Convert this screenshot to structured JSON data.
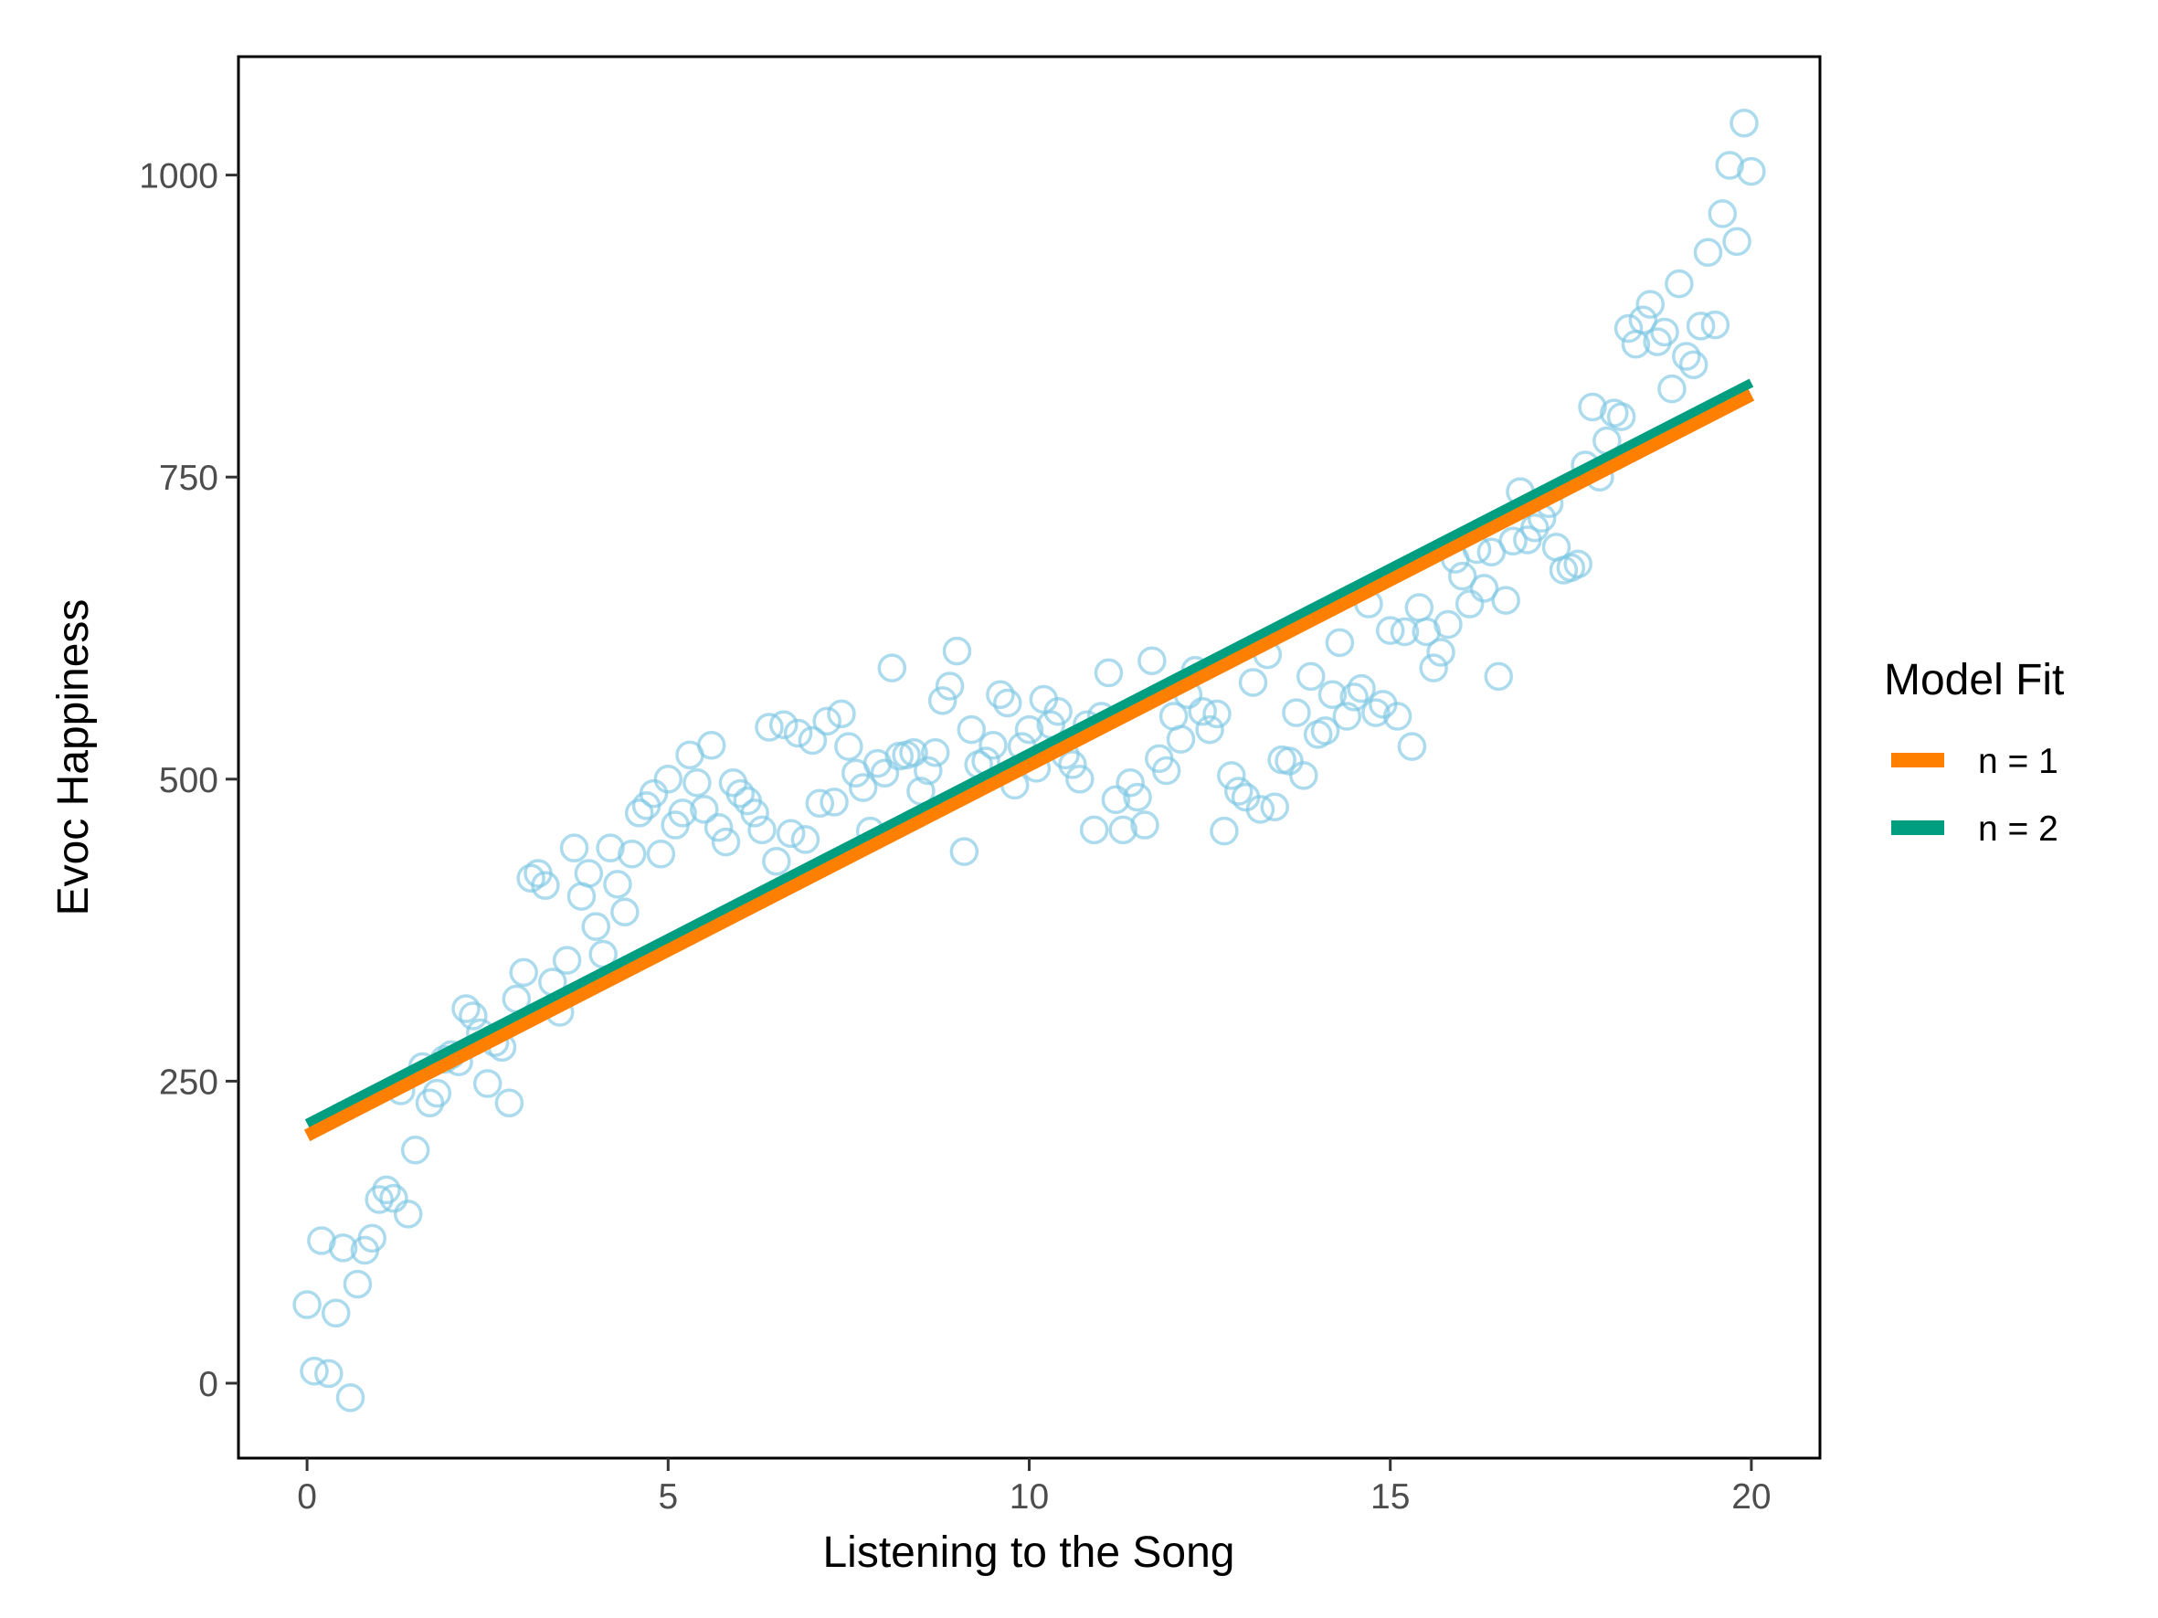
{
  "chart_data": {
    "type": "scatter",
    "xlabel": "Listening to the Song",
    "ylabel": "Evoc Happiness",
    "xlim": [
      -0.95,
      20.95
    ],
    "ylim": [
      -62,
      1098
    ],
    "xticks": [
      0,
      5,
      10,
      15,
      20
    ],
    "xtick_labels": [
      "0",
      "5",
      "10",
      "15",
      "20"
    ],
    "yticks": [
      0,
      250,
      500,
      750,
      1000
    ],
    "ytick_labels": [
      "0",
      "250",
      "500",
      "750",
      "1000"
    ],
    "grid": false,
    "legend": {
      "title": "Model Fit",
      "position": "right",
      "entries": [
        {
          "label": "n = 1",
          "color": "#ff8000"
        },
        {
          "label": "n = 2",
          "color": "#009e80"
        }
      ]
    },
    "points_color": "#7ec8e3",
    "points": [
      {
        "x": 0.0,
        "y": 65
      },
      {
        "x": 0.1,
        "y": 10
      },
      {
        "x": 0.2,
        "y": 118
      },
      {
        "x": 0.3,
        "y": 8
      },
      {
        "x": 0.4,
        "y": 58
      },
      {
        "x": 0.5,
        "y": 112
      },
      {
        "x": 0.6,
        "y": -12
      },
      {
        "x": 0.7,
        "y": 82
      },
      {
        "x": 0.8,
        "y": 110
      },
      {
        "x": 0.9,
        "y": 120
      },
      {
        "x": 1.0,
        "y": 152
      },
      {
        "x": 1.1,
        "y": 160
      },
      {
        "x": 1.2,
        "y": 153
      },
      {
        "x": 1.3,
        "y": 242
      },
      {
        "x": 1.4,
        "y": 140
      },
      {
        "x": 1.5,
        "y": 193
      },
      {
        "x": 1.6,
        "y": 262
      },
      {
        "x": 1.7,
        "y": 232
      },
      {
        "x": 1.8,
        "y": 240
      },
      {
        "x": 1.9,
        "y": 268
      },
      {
        "x": 2.0,
        "y": 272
      },
      {
        "x": 2.1,
        "y": 266
      },
      {
        "x": 2.2,
        "y": 310
      },
      {
        "x": 2.3,
        "y": 304
      },
      {
        "x": 2.4,
        "y": 290
      },
      {
        "x": 2.5,
        "y": 248
      },
      {
        "x": 2.6,
        "y": 282
      },
      {
        "x": 2.7,
        "y": 278
      },
      {
        "x": 2.8,
        "y": 232
      },
      {
        "x": 2.9,
        "y": 318
      },
      {
        "x": 3.0,
        "y": 340
      },
      {
        "x": 3.1,
        "y": 418
      },
      {
        "x": 3.2,
        "y": 422
      },
      {
        "x": 3.3,
        "y": 412
      },
      {
        "x": 3.4,
        "y": 332
      },
      {
        "x": 3.5,
        "y": 307
      },
      {
        "x": 3.6,
        "y": 350
      },
      {
        "x": 3.7,
        "y": 443
      },
      {
        "x": 3.8,
        "y": 403
      },
      {
        "x": 3.9,
        "y": 422
      },
      {
        "x": 4.0,
        "y": 378
      },
      {
        "x": 4.1,
        "y": 355
      },
      {
        "x": 4.2,
        "y": 443
      },
      {
        "x": 4.3,
        "y": 413
      },
      {
        "x": 4.4,
        "y": 390
      },
      {
        "x": 4.5,
        "y": 438
      },
      {
        "x": 4.6,
        "y": 472
      },
      {
        "x": 4.7,
        "y": 478
      },
      {
        "x": 4.8,
        "y": 488
      },
      {
        "x": 4.9,
        "y": 438
      },
      {
        "x": 5.0,
        "y": 500
      },
      {
        "x": 5.1,
        "y": 462
      },
      {
        "x": 5.2,
        "y": 472
      },
      {
        "x": 5.3,
        "y": 520
      },
      {
        "x": 5.4,
        "y": 497
      },
      {
        "x": 5.5,
        "y": 475
      },
      {
        "x": 5.6,
        "y": 528
      },
      {
        "x": 5.7,
        "y": 460
      },
      {
        "x": 5.8,
        "y": 448
      },
      {
        "x": 5.9,
        "y": 497
      },
      {
        "x": 6.0,
        "y": 488
      },
      {
        "x": 6.1,
        "y": 482
      },
      {
        "x": 6.2,
        "y": 472
      },
      {
        "x": 6.3,
        "y": 458
      },
      {
        "x": 6.4,
        "y": 543
      },
      {
        "x": 6.5,
        "y": 432
      },
      {
        "x": 6.6,
        "y": 545
      },
      {
        "x": 6.7,
        "y": 455
      },
      {
        "x": 6.8,
        "y": 538
      },
      {
        "x": 6.9,
        "y": 450
      },
      {
        "x": 7.0,
        "y": 532
      },
      {
        "x": 7.1,
        "y": 480
      },
      {
        "x": 7.2,
        "y": 548
      },
      {
        "x": 7.3,
        "y": 481
      },
      {
        "x": 7.4,
        "y": 554
      },
      {
        "x": 7.5,
        "y": 527
      },
      {
        "x": 7.6,
        "y": 505
      },
      {
        "x": 7.7,
        "y": 493
      },
      {
        "x": 7.8,
        "y": 457
      },
      {
        "x": 7.9,
        "y": 513
      },
      {
        "x": 8.0,
        "y": 505
      },
      {
        "x": 8.1,
        "y": 592
      },
      {
        "x": 8.2,
        "y": 519
      },
      {
        "x": 8.3,
        "y": 520
      },
      {
        "x": 8.4,
        "y": 522
      },
      {
        "x": 8.5,
        "y": 490
      },
      {
        "x": 8.6,
        "y": 507
      },
      {
        "x": 8.7,
        "y": 522
      },
      {
        "x": 8.8,
        "y": 565
      },
      {
        "x": 8.9,
        "y": 577
      },
      {
        "x": 9.0,
        "y": 606
      },
      {
        "x": 9.1,
        "y": 440
      },
      {
        "x": 9.2,
        "y": 541
      },
      {
        "x": 9.3,
        "y": 512
      },
      {
        "x": 9.4,
        "y": 515
      },
      {
        "x": 9.5,
        "y": 528
      },
      {
        "x": 9.6,
        "y": 570
      },
      {
        "x": 9.7,
        "y": 563
      },
      {
        "x": 9.8,
        "y": 495
      },
      {
        "x": 9.9,
        "y": 527
      },
      {
        "x": 10.0,
        "y": 541
      },
      {
        "x": 10.1,
        "y": 509
      },
      {
        "x": 10.2,
        "y": 566
      },
      {
        "x": 10.3,
        "y": 545
      },
      {
        "x": 10.4,
        "y": 556
      },
      {
        "x": 10.5,
        "y": 520
      },
      {
        "x": 10.6,
        "y": 512
      },
      {
        "x": 10.7,
        "y": 500
      },
      {
        "x": 10.8,
        "y": 545
      },
      {
        "x": 10.9,
        "y": 458
      },
      {
        "x": 11.0,
        "y": 552
      },
      {
        "x": 11.1,
        "y": 588
      },
      {
        "x": 11.2,
        "y": 483
      },
      {
        "x": 11.3,
        "y": 458
      },
      {
        "x": 11.4,
        "y": 497
      },
      {
        "x": 11.5,
        "y": 485
      },
      {
        "x": 11.6,
        "y": 462
      },
      {
        "x": 11.7,
        "y": 598
      },
      {
        "x": 11.8,
        "y": 517
      },
      {
        "x": 11.9,
        "y": 507
      },
      {
        "x": 12.0,
        "y": 552
      },
      {
        "x": 12.1,
        "y": 533
      },
      {
        "x": 12.2,
        "y": 570
      },
      {
        "x": 12.3,
        "y": 590
      },
      {
        "x": 12.4,
        "y": 556
      },
      {
        "x": 12.5,
        "y": 541
      },
      {
        "x": 12.6,
        "y": 554
      },
      {
        "x": 12.7,
        "y": 457
      },
      {
        "x": 12.8,
        "y": 503
      },
      {
        "x": 12.9,
        "y": 490
      },
      {
        "x": 13.0,
        "y": 485
      },
      {
        "x": 13.1,
        "y": 580
      },
      {
        "x": 13.2,
        "y": 475
      },
      {
        "x": 13.3,
        "y": 603
      },
      {
        "x": 13.4,
        "y": 477
      },
      {
        "x": 13.5,
        "y": 516
      },
      {
        "x": 13.6,
        "y": 515
      },
      {
        "x": 13.7,
        "y": 555
      },
      {
        "x": 13.8,
        "y": 503
      },
      {
        "x": 13.9,
        "y": 585
      },
      {
        "x": 14.0,
        "y": 537
      },
      {
        "x": 14.1,
        "y": 540
      },
      {
        "x": 14.2,
        "y": 570
      },
      {
        "x": 14.3,
        "y": 613
      },
      {
        "x": 14.4,
        "y": 552
      },
      {
        "x": 14.5,
        "y": 568
      },
      {
        "x": 14.6,
        "y": 575
      },
      {
        "x": 14.7,
        "y": 645
      },
      {
        "x": 14.8,
        "y": 555
      },
      {
        "x": 14.9,
        "y": 562
      },
      {
        "x": 15.0,
        "y": 623
      },
      {
        "x": 15.1,
        "y": 552
      },
      {
        "x": 15.2,
        "y": 622
      },
      {
        "x": 15.3,
        "y": 527
      },
      {
        "x": 15.4,
        "y": 642
      },
      {
        "x": 15.5,
        "y": 622
      },
      {
        "x": 15.6,
        "y": 592
      },
      {
        "x": 15.7,
        "y": 605
      },
      {
        "x": 15.8,
        "y": 628
      },
      {
        "x": 15.9,
        "y": 682
      },
      {
        "x": 16.0,
        "y": 668
      },
      {
        "x": 16.1,
        "y": 645
      },
      {
        "x": 16.2,
        "y": 690
      },
      {
        "x": 16.3,
        "y": 658
      },
      {
        "x": 16.4,
        "y": 688
      },
      {
        "x": 16.5,
        "y": 585
      },
      {
        "x": 16.6,
        "y": 648
      },
      {
        "x": 16.7,
        "y": 697
      },
      {
        "x": 16.8,
        "y": 738
      },
      {
        "x": 16.9,
        "y": 698
      },
      {
        "x": 17.0,
        "y": 708
      },
      {
        "x": 17.1,
        "y": 716
      },
      {
        "x": 17.2,
        "y": 728
      },
      {
        "x": 17.3,
        "y": 692
      },
      {
        "x": 17.4,
        "y": 673
      },
      {
        "x": 17.5,
        "y": 675
      },
      {
        "x": 17.6,
        "y": 678
      },
      {
        "x": 17.7,
        "y": 760
      },
      {
        "x": 17.8,
        "y": 808
      },
      {
        "x": 17.9,
        "y": 750
      },
      {
        "x": 18.0,
        "y": 780
      },
      {
        "x": 18.1,
        "y": 803
      },
      {
        "x": 18.2,
        "y": 800
      },
      {
        "x": 18.3,
        "y": 873
      },
      {
        "x": 18.4,
        "y": 860
      },
      {
        "x": 18.5,
        "y": 880
      },
      {
        "x": 18.6,
        "y": 893
      },
      {
        "x": 18.7,
        "y": 862
      },
      {
        "x": 18.8,
        "y": 870
      },
      {
        "x": 18.9,
        "y": 823
      },
      {
        "x": 19.0,
        "y": 910
      },
      {
        "x": 19.1,
        "y": 850
      },
      {
        "x": 19.2,
        "y": 843
      },
      {
        "x": 19.3,
        "y": 875
      },
      {
        "x": 19.4,
        "y": 936
      },
      {
        "x": 19.5,
        "y": 876
      },
      {
        "x": 19.6,
        "y": 968
      },
      {
        "x": 19.7,
        "y": 1008
      },
      {
        "x": 19.8,
        "y": 945
      },
      {
        "x": 19.9,
        "y": 1043
      },
      {
        "x": 20.0,
        "y": 1003
      }
    ],
    "series": [
      {
        "name": "n = 1",
        "color": "#ff8000",
        "x": [
          0,
          20
        ],
        "y": [
          205,
          818
        ]
      },
      {
        "name": "n = 2",
        "color": "#009e80",
        "x": [
          0,
          20
        ],
        "y": [
          215,
          828
        ]
      }
    ]
  }
}
